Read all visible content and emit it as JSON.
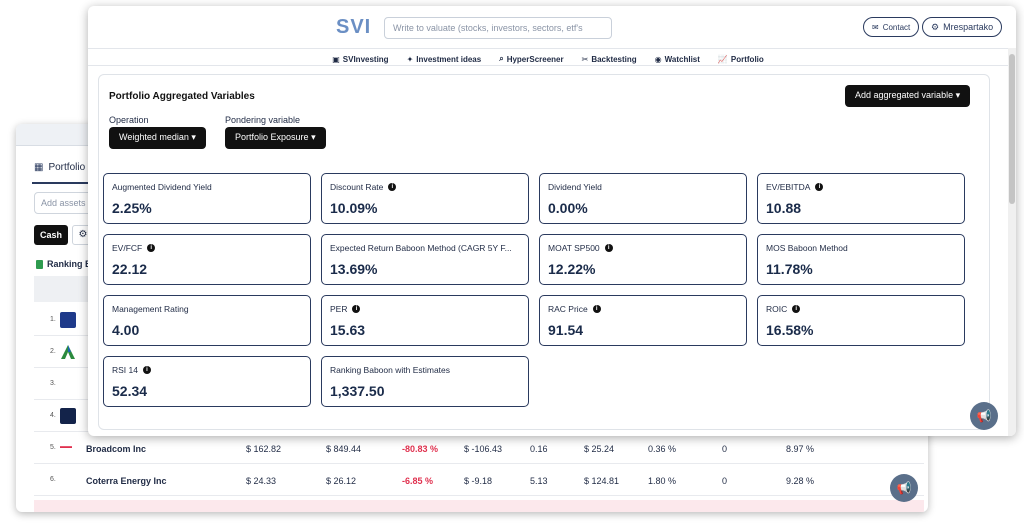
{
  "header": {
    "logo": "SVI",
    "search_placeholder": "Write to valuate (stocks, investors, sectors, etf's",
    "contact_label": "Contact",
    "user_label": "Mrespartako"
  },
  "nav": {
    "items": [
      "SVInvesting",
      "Investment ideas",
      "HyperScreener",
      "Backtesting",
      "Watchlist",
      "Portfolio"
    ]
  },
  "panel": {
    "title": "Portfolio Aggregated Variables",
    "add_button": "Add aggregated variable",
    "operation_label": "Operation",
    "operation_value": "Weighted median",
    "pondering_label": "Pondering variable",
    "pondering_value": "Portfolio Exposure"
  },
  "metrics": [
    {
      "name": "Augmented Dividend Yield",
      "value": "2.25%",
      "info": false
    },
    {
      "name": "Discount Rate",
      "value": "10.09%",
      "info": true
    },
    {
      "name": "Dividend Yield",
      "value": "0.00%",
      "info": false
    },
    {
      "name": "EV/EBITDA",
      "value": "10.88",
      "info": true
    },
    {
      "name": "EV/FCF",
      "value": "22.12",
      "info": true
    },
    {
      "name": "Expected Return Baboon Method (CAGR 5Y F...",
      "value": "13.69%",
      "info": false
    },
    {
      "name": "MOAT SP500",
      "value": "12.22%",
      "info": true
    },
    {
      "name": "MOS Baboon Method",
      "value": "11.78%",
      "info": false
    },
    {
      "name": "Management Rating",
      "value": "4.00",
      "info": false
    },
    {
      "name": "PER",
      "value": "15.63",
      "info": true
    },
    {
      "name": "RAC Price",
      "value": "91.54",
      "info": true
    },
    {
      "name": "ROIC",
      "value": "16.58%",
      "info": true
    },
    {
      "name": "RSI 14",
      "value": "52.34",
      "info": true
    },
    {
      "name": "Ranking Baboon with Estimates",
      "value": "1,337.50",
      "info": false
    }
  ],
  "back": {
    "tab_label": "Portfolio",
    "add_placeholder": "Add assets",
    "cash_label": "Cash",
    "ranking_label": "Ranking B",
    "rows": [
      {
        "num": "1.",
        "logo_color": "#1e3a8a"
      },
      {
        "num": "2.",
        "logo_color": "#2b8a3e"
      },
      {
        "num": "3.",
        "logo_color": "#ffffff"
      },
      {
        "num": "4.",
        "logo_color": "#13234a"
      },
      {
        "num": "5.",
        "name": "Broadcom Inc",
        "c1": "$ 162.82",
        "c2": "$ 849.44",
        "c3": "-80.83 %",
        "c4": "$ -106.43",
        "c5": "0.16",
        "c6": "$ 25.24",
        "c7": "0.36 %",
        "c8": "0",
        "c9": "8.97 %",
        "logo_color": "#e0304e"
      },
      {
        "num": "6.",
        "name": "Coterra Energy Inc",
        "c1": "$ 24.33",
        "c2": "$ 26.12",
        "c3": "-6.85 %",
        "c4": "$ -9.18",
        "c5": "5.13",
        "c6": "$ 124.81",
        "c7": "1.80 %",
        "c8": "0",
        "c9": "9.28 %",
        "logo_color": "#ffffff"
      }
    ]
  },
  "colors": {
    "accent": "#2a3a5e",
    "negative": "#e0304e",
    "logo": "#6b8fc4"
  },
  "icons": [
    "briefcase-icon",
    "bulb-icon",
    "search-icon",
    "tools-icon",
    "eye-icon",
    "chart-icon",
    "gear-icon",
    "envelope-icon",
    "megaphone-icon",
    "info-icon",
    "caret-down-icon"
  ]
}
